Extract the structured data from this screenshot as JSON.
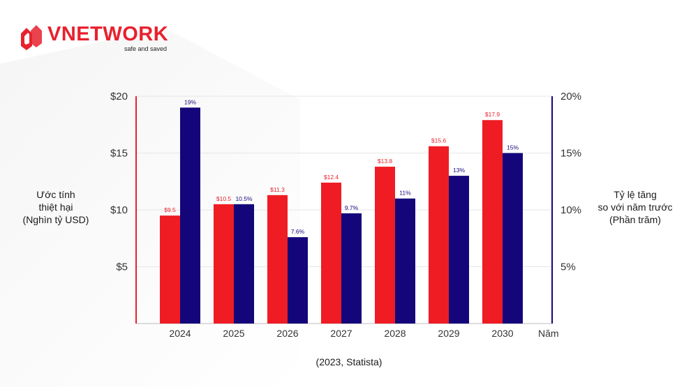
{
  "brand": {
    "name": "VNETWORK",
    "tagline": "safe and saved",
    "color": "#e8212e"
  },
  "source_note": "(2023, Statista)",
  "chart_data": {
    "type": "bar",
    "categories": [
      "2024",
      "2025",
      "2026",
      "2027",
      "2028",
      "2029",
      "2030"
    ],
    "series": [
      {
        "name": "",
        "axis": "left",
        "color": "#ef1c24",
        "label_color": "#e8212e",
        "values": [
          9.5,
          10.5,
          11.3,
          12.4,
          13.8,
          15.6,
          17.9
        ],
        "labels": [
          "$9.5",
          "$10.5",
          "$11.3",
          "$12.4",
          "$13.8",
          "$15.6",
          "$17.9"
        ]
      },
      {
        "name": "",
        "axis": "right",
        "color": "#14067a",
        "label_color": "#14067a",
        "values": [
          19,
          10.5,
          7.6,
          9.7,
          11,
          13,
          15
        ],
        "labels": [
          "19%",
          "10.5%",
          "7.6%",
          "9.7%",
          "11%",
          "13%",
          "15%"
        ]
      }
    ],
    "xlabel": "Năm",
    "ylabel_left": [
      "Ước tính",
      "thiệt hại",
      "(Nghìn tỷ USD)"
    ],
    "ylabel_right": [
      "Tỷ lệ tăng",
      "so với năm trước",
      "(Phần trăm)"
    ],
    "ylim_left": [
      0,
      20
    ],
    "ylim_right": [
      0,
      20
    ],
    "yticks_left": [
      {
        "value": 5,
        "label": "$5"
      },
      {
        "value": 10,
        "label": "$10"
      },
      {
        "value": 15,
        "label": "$15"
      },
      {
        "value": 20,
        "label": "$20"
      }
    ],
    "yticks_right": [
      {
        "value": 5,
        "label": "5%"
      },
      {
        "value": 10,
        "label": "10%"
      },
      {
        "value": 15,
        "label": "15%"
      },
      {
        "value": 20,
        "label": "20%"
      }
    ],
    "grid": true,
    "left_axis_color": "#e8212e",
    "right_axis_color": "#14067a"
  }
}
